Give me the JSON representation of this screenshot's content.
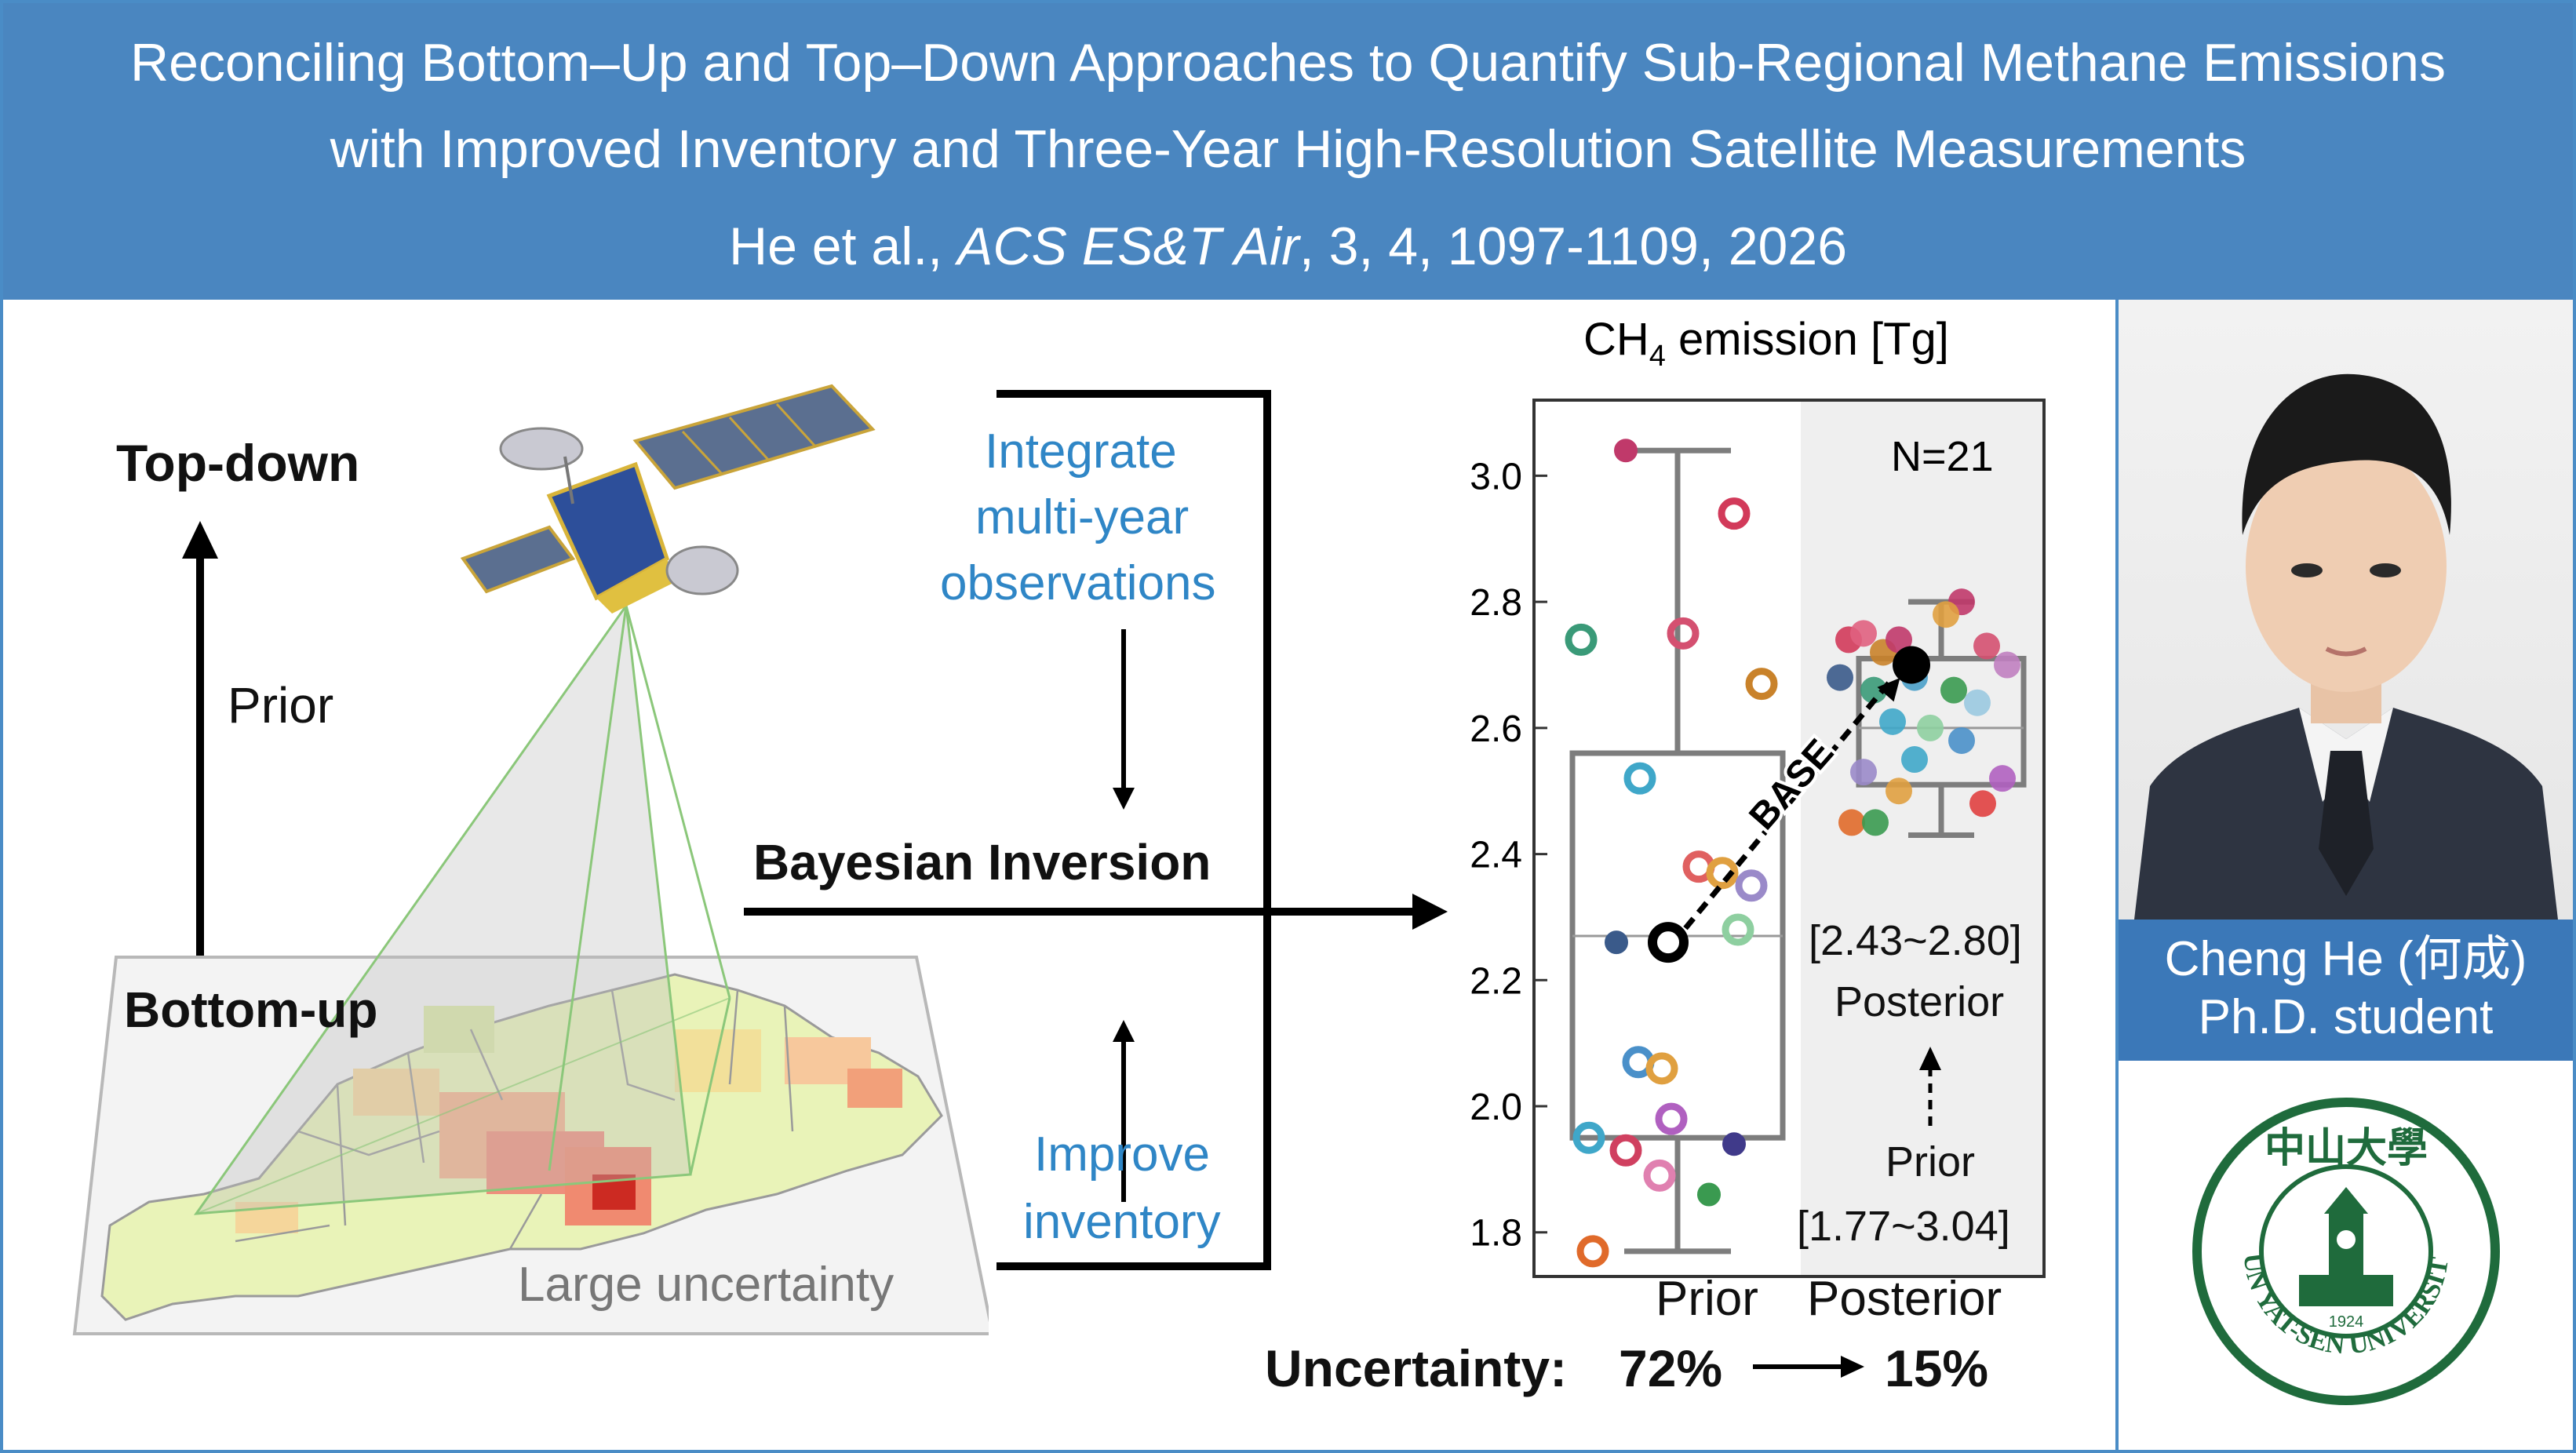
{
  "banner": {
    "title_line1": "Reconciling Bottom–Up and Top–Down Approaches to Quantify Sub-Regional Methane Emissions",
    "title_line2": "with Improved Inventory and Three-Year High-Resolution Satellite Measurements",
    "citation_authors": "He et al., ",
    "citation_journal": "ACS ES&T Air",
    "citation_details": ", 3, 4, 1097-1109, 2026"
  },
  "left_panel": {
    "top_down": "Top-down",
    "prior": "Prior",
    "bottom_up": "Bottom-up",
    "large_uncertainty": "Large uncertainty"
  },
  "middle_panel": {
    "integrate_line1": "Integrate",
    "integrate_line2": "multi-year",
    "integrate_line3": "observations",
    "bayesian": "Bayesian Inversion",
    "improve_line1": "Improve",
    "improve_line2": "inventory"
  },
  "chart_data": {
    "type": "box",
    "title": "CH",
    "title_sub": "4",
    "title_rest": " emission [Tg]",
    "categories": [
      "Prior",
      "Posterior"
    ],
    "ylim": [
      1.73,
      3.12
    ],
    "yticks": [
      "1.8",
      "2.0",
      "2.2",
      "2.4",
      "2.6",
      "2.8",
      "3.0"
    ],
    "n_label": "N=21",
    "base_label": "BASE",
    "prior_box": {
      "min": 1.77,
      "q1": 1.95,
      "median": 2.27,
      "q3": 2.56,
      "max": 3.04,
      "mean": 2.26
    },
    "posterior_box": {
      "min": 2.43,
      "q1": 2.51,
      "median": 2.6,
      "q3": 2.71,
      "max": 2.8,
      "mean": 2.7
    },
    "posterior_range": "[2.43~2.80]",
    "posterior_label": "Posterior",
    "prior_label": "Prior",
    "prior_range": "[1.77~3.04]",
    "uncertainty_label": "Uncertainty:",
    "uncertainty_prior": "72%",
    "uncertainty_posterior": "15%"
  },
  "person": {
    "name": "Cheng He (何成)",
    "title": "Ph.D. student"
  },
  "logo": {
    "chinese": "中山大學",
    "english": "SUN YAT-SEN UNIVERSITY",
    "year": "1924"
  },
  "colors": {
    "banner": "#4a86c0",
    "name_box": "#3b78b8",
    "blue_text": "#2f86c6",
    "logo_green": "#1f6b3c"
  }
}
